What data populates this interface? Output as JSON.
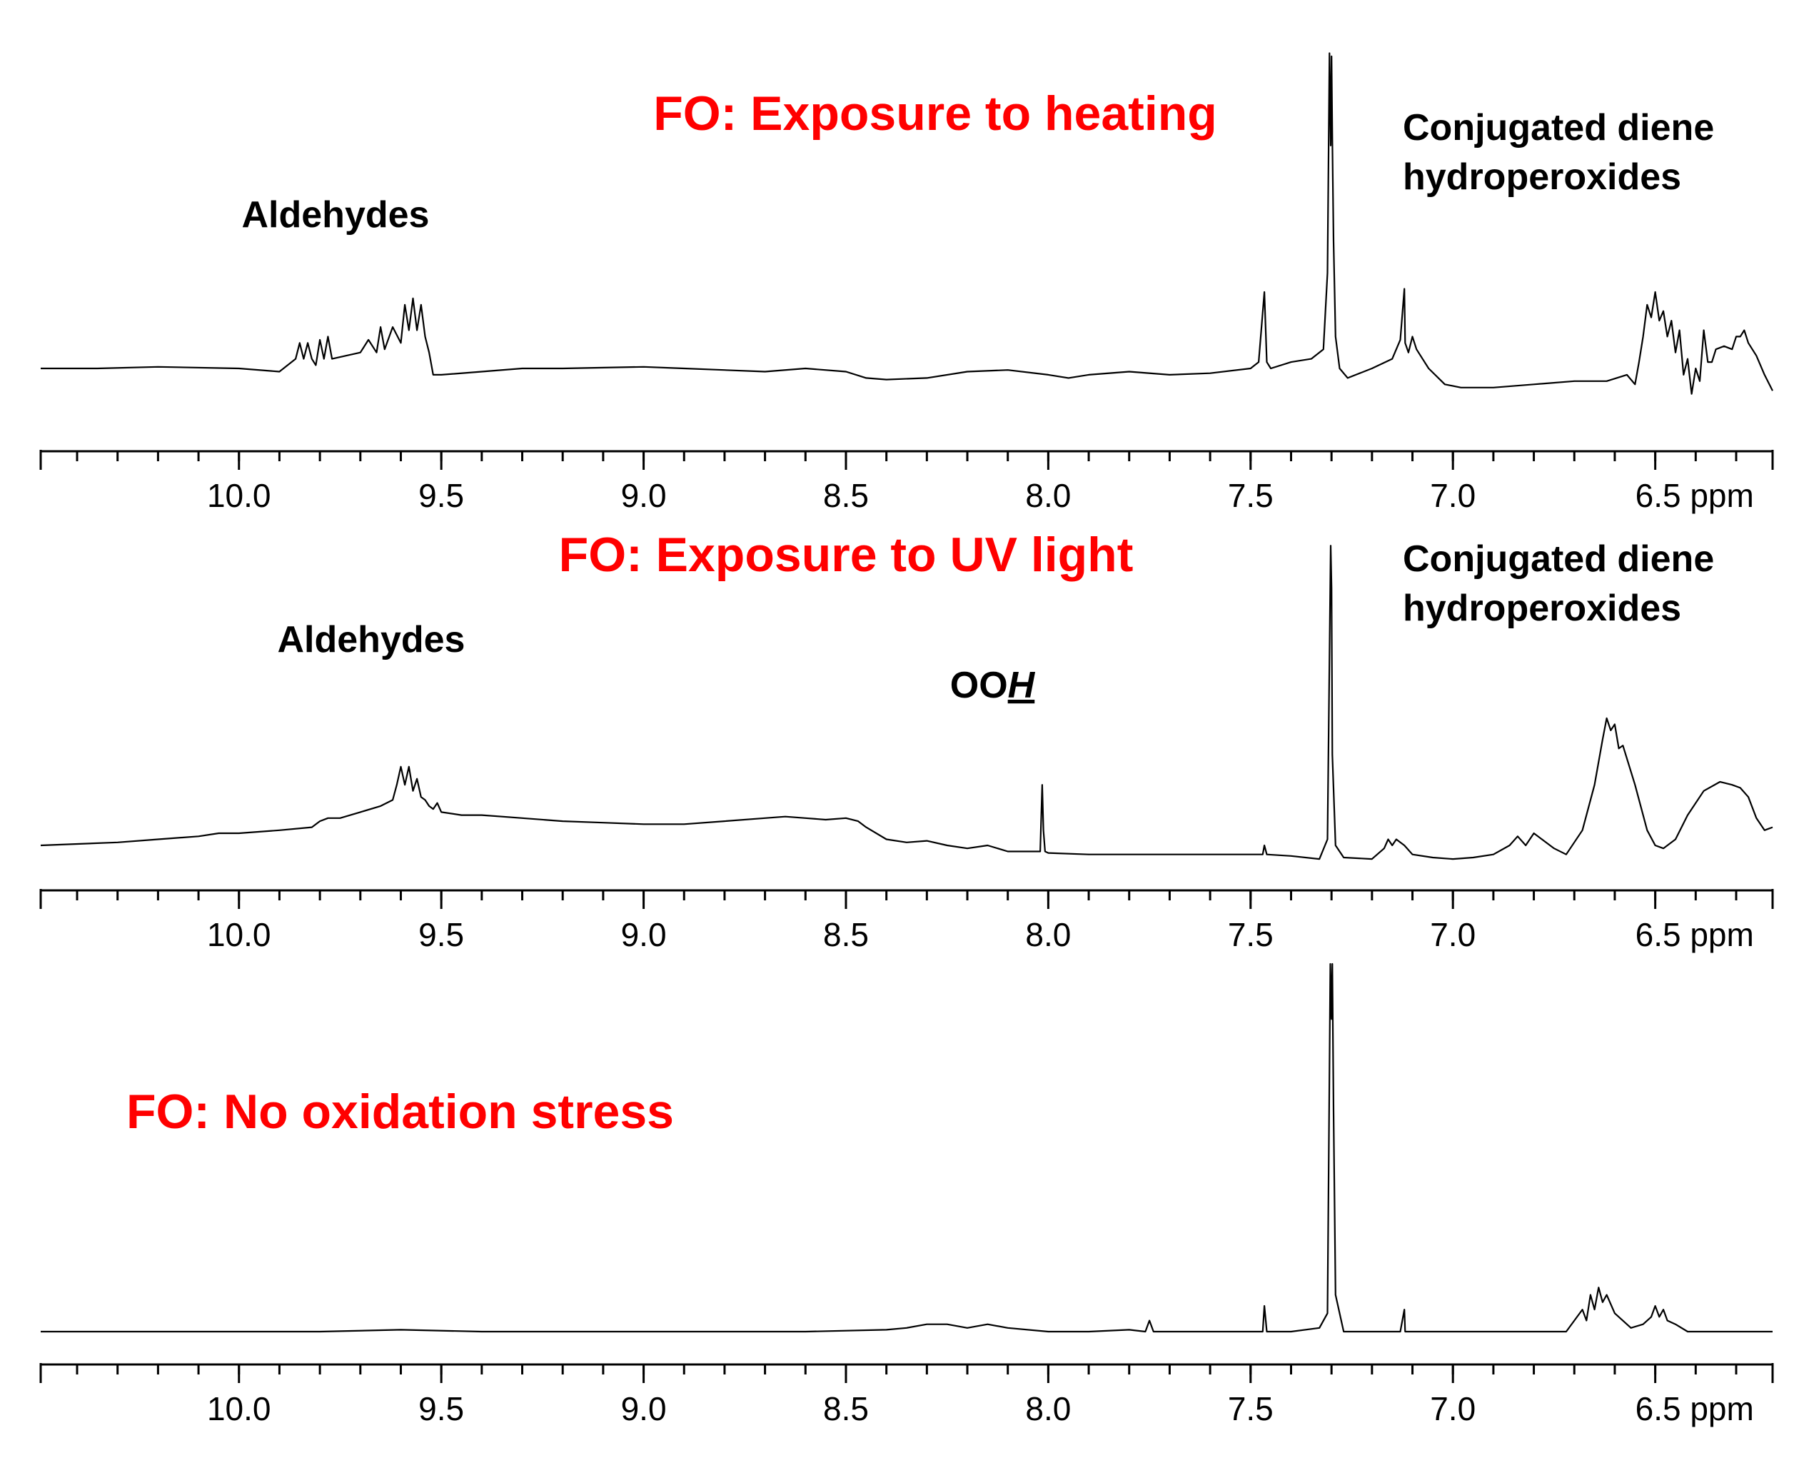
{
  "colors": {
    "title": "#ff0000",
    "text": "#000000",
    "trace": "#000000",
    "background": "#ffffff"
  },
  "chart_data": [
    {
      "type": "line",
      "title": "FO: Exposure to heating",
      "xlabel": "ppm",
      "x_unit": "ppm",
      "xlim": [
        10.49,
        6.21
      ],
      "x_reversed": true,
      "x_ticks": [
        {
          "value": 10.0,
          "label": "10.0"
        },
        {
          "value": 9.5,
          "label": "9.5"
        },
        {
          "value": 9.0,
          "label": "9.0"
        },
        {
          "value": 8.5,
          "label": "8.5"
        },
        {
          "value": 8.0,
          "label": "8.0"
        },
        {
          "value": 7.5,
          "label": "7.5"
        },
        {
          "value": 7.0,
          "label": "7.0"
        },
        {
          "value": 6.5,
          "label": "6.5"
        }
      ],
      "last_tick_suffix": " ppm",
      "ylim": [
        -0.06,
        1.0
      ],
      "annotations": [
        {
          "text": "Aldehydes",
          "x": 9.75
        },
        {
          "text": "Conjugated diene",
          "x": 6.65
        },
        {
          "text": "hydroperoxides",
          "x": 6.65
        }
      ],
      "series": [
        {
          "x": [
            10.49,
            10.35,
            10.2,
            10.0,
            9.9,
            9.86,
            9.85,
            9.84,
            9.83,
            9.82,
            9.81,
            9.8,
            9.79,
            9.78,
            9.77,
            9.7,
            9.68,
            9.66,
            9.65,
            9.64,
            9.62,
            9.6,
            9.59,
            9.58,
            9.57,
            9.56,
            9.55,
            9.54,
            9.53,
            9.52,
            9.5,
            9.4,
            9.3,
            9.2,
            9.0,
            8.9,
            8.7,
            8.6,
            8.5,
            8.45,
            8.4,
            8.3,
            8.2,
            8.1,
            8.0,
            7.95,
            7.9,
            7.8,
            7.7,
            7.6,
            7.5,
            7.48,
            7.466,
            7.46,
            7.45,
            7.4,
            7.35,
            7.32,
            7.31,
            7.305,
            7.302,
            7.3,
            7.298,
            7.295,
            7.29,
            7.28,
            7.26,
            7.2,
            7.15,
            7.13,
            7.12,
            7.118,
            7.11,
            7.1,
            7.09,
            7.08,
            7.06,
            7.02,
            6.98,
            6.95,
            6.9,
            6.8,
            6.7,
            6.62,
            6.57,
            6.55,
            6.54,
            6.53,
            6.52,
            6.51,
            6.5,
            6.49,
            6.48,
            6.47,
            6.46,
            6.45,
            6.44,
            6.43,
            6.42,
            6.41,
            6.4,
            6.39,
            6.38,
            6.37,
            6.36,
            6.35,
            6.33,
            6.31,
            6.3,
            6.29,
            6.28,
            6.27,
            6.25,
            6.23,
            6.21
          ],
          "y": [
            0.0,
            0.0,
            0.005,
            0.0,
            -0.01,
            0.03,
            0.08,
            0.03,
            0.08,
            0.03,
            0.01,
            0.09,
            0.03,
            0.1,
            0.03,
            0.05,
            0.09,
            0.05,
            0.13,
            0.06,
            0.13,
            0.08,
            0.2,
            0.12,
            0.22,
            0.12,
            0.2,
            0.1,
            0.05,
            -0.02,
            -0.02,
            -0.01,
            0.0,
            0.0,
            0.005,
            0.0,
            -0.01,
            0.0,
            -0.01,
            -0.03,
            -0.035,
            -0.03,
            -0.01,
            -0.005,
            -0.02,
            -0.03,
            -0.02,
            -0.01,
            -0.02,
            -0.015,
            0.0,
            0.02,
            0.24,
            0.02,
            0.0,
            0.02,
            0.03,
            0.06,
            0.3,
            0.99,
            0.7,
            0.98,
            0.72,
            0.4,
            0.1,
            0.0,
            -0.03,
            0.0,
            0.03,
            0.09,
            0.25,
            0.08,
            0.05,
            0.1,
            0.06,
            0.04,
            0.0,
            -0.05,
            -0.06,
            -0.06,
            -0.06,
            -0.05,
            -0.04,
            -0.04,
            -0.02,
            -0.05,
            0.02,
            0.1,
            0.2,
            0.16,
            0.24,
            0.15,
            0.18,
            0.1,
            0.15,
            0.05,
            0.12,
            -0.02,
            0.03,
            -0.08,
            0.0,
            -0.04,
            0.12,
            0.02,
            0.02,
            0.06,
            0.07,
            0.06,
            0.1,
            0.1,
            0.12,
            0.08,
            0.04,
            -0.02,
            -0.07
          ]
        }
      ]
    },
    {
      "type": "line",
      "title": "FO: Exposure to UV light",
      "xlabel": "ppm",
      "x_unit": "ppm",
      "xlim": [
        10.49,
        6.21
      ],
      "x_reversed": true,
      "x_ticks": [
        {
          "value": 10.0,
          "label": "10.0"
        },
        {
          "value": 9.5,
          "label": "9.5"
        },
        {
          "value": 9.0,
          "label": "9.0"
        },
        {
          "value": 8.5,
          "label": "8.5"
        },
        {
          "value": 8.0,
          "label": "8.0"
        },
        {
          "value": 7.5,
          "label": "7.5"
        },
        {
          "value": 7.0,
          "label": "7.0"
        },
        {
          "value": 6.5,
          "label": "6.5"
        }
      ],
      "last_tick_suffix": " ppm",
      "ylim": [
        -0.05,
        1.0
      ],
      "annotations": [
        {
          "text": "Aldehydes",
          "x": 9.65
        },
        {
          "text": "OOH",
          "x": 8.04,
          "underlined_italic_part": "H"
        },
        {
          "text": "Conjugated diene",
          "x": 6.65
        },
        {
          "text": "hydroperoxides",
          "x": 6.65
        }
      ],
      "series": [
        {
          "x": [
            10.49,
            10.3,
            10.2,
            10.1,
            10.05,
            10.0,
            9.9,
            9.82,
            9.8,
            9.78,
            9.75,
            9.7,
            9.65,
            9.62,
            9.61,
            9.6,
            9.59,
            9.58,
            9.57,
            9.56,
            9.55,
            9.54,
            9.53,
            9.52,
            9.51,
            9.5,
            9.45,
            9.4,
            9.3,
            9.2,
            9.1,
            9.0,
            8.9,
            8.8,
            8.7,
            8.65,
            8.6,
            8.55,
            8.5,
            8.47,
            8.45,
            8.4,
            8.35,
            8.3,
            8.25,
            8.2,
            8.15,
            8.1,
            8.05,
            8.02,
            8.015,
            8.012,
            8.008,
            8.0,
            7.9,
            7.8,
            7.7,
            7.6,
            7.5,
            7.47,
            7.466,
            7.46,
            7.4,
            7.33,
            7.31,
            7.302,
            7.3,
            7.298,
            7.29,
            7.27,
            7.2,
            7.17,
            7.16,
            7.15,
            7.14,
            7.13,
            7.12,
            7.1,
            7.05,
            7.0,
            6.95,
            6.9,
            6.86,
            6.84,
            6.82,
            6.8,
            6.78,
            6.75,
            6.72,
            6.68,
            6.65,
            6.63,
            6.62,
            6.61,
            6.6,
            6.59,
            6.58,
            6.55,
            6.52,
            6.5,
            6.48,
            6.45,
            6.42,
            6.38,
            6.34,
            6.31,
            6.29,
            6.27,
            6.25,
            6.23,
            6.21
          ],
          "y": [
            0.0,
            0.01,
            0.02,
            0.03,
            0.04,
            0.04,
            0.05,
            0.06,
            0.08,
            0.09,
            0.09,
            0.11,
            0.13,
            0.15,
            0.2,
            0.26,
            0.2,
            0.26,
            0.18,
            0.22,
            0.16,
            0.15,
            0.13,
            0.12,
            0.14,
            0.11,
            0.1,
            0.1,
            0.09,
            0.08,
            0.075,
            0.07,
            0.07,
            0.08,
            0.09,
            0.095,
            0.09,
            0.085,
            0.09,
            0.08,
            0.06,
            0.02,
            0.01,
            0.015,
            0.0,
            -0.01,
            0.0,
            -0.02,
            -0.02,
            -0.02,
            0.2,
            0.05,
            -0.02,
            -0.025,
            -0.03,
            -0.03,
            -0.03,
            -0.03,
            -0.03,
            -0.03,
            0.0,
            -0.03,
            -0.035,
            -0.045,
            0.02,
            0.99,
            0.85,
            0.3,
            0.0,
            -0.04,
            -0.045,
            -0.01,
            0.02,
            0.0,
            0.02,
            0.01,
            0.0,
            -0.03,
            -0.04,
            -0.045,
            -0.04,
            -0.03,
            0.0,
            0.03,
            0.0,
            0.04,
            0.02,
            -0.01,
            -0.03,
            0.05,
            0.2,
            0.35,
            0.42,
            0.38,
            0.4,
            0.32,
            0.33,
            0.2,
            0.05,
            0.0,
            -0.01,
            0.02,
            0.1,
            0.18,
            0.21,
            0.2,
            0.19,
            0.16,
            0.09,
            0.05,
            0.06
          ]
        }
      ]
    },
    {
      "type": "line",
      "title": "FO: No oxidation stress",
      "xlabel": "ppm",
      "x_unit": "ppm",
      "xlim": [
        10.49,
        6.21
      ],
      "x_reversed": true,
      "x_ticks": [
        {
          "value": 10.0,
          "label": "10.0"
        },
        {
          "value": 9.5,
          "label": "9.5"
        },
        {
          "value": 9.0,
          "label": "9.0"
        },
        {
          "value": 8.5,
          "label": "8.5"
        },
        {
          "value": 8.0,
          "label": "8.0"
        },
        {
          "value": 7.5,
          "label": "7.5"
        },
        {
          "value": 7.0,
          "label": "7.0"
        },
        {
          "value": 6.5,
          "label": "6.5"
        }
      ],
      "last_tick_suffix": " ppm",
      "ylim": [
        -0.02,
        1.0
      ],
      "series": [
        {
          "x": [
            10.49,
            10.2,
            10.0,
            9.8,
            9.6,
            9.4,
            9.2,
            9.0,
            8.8,
            8.6,
            8.4,
            8.35,
            8.3,
            8.25,
            8.2,
            8.15,
            8.1,
            8.0,
            7.9,
            7.8,
            7.76,
            7.75,
            7.74,
            7.7,
            7.6,
            7.5,
            7.47,
            7.466,
            7.46,
            7.4,
            7.33,
            7.31,
            7.303,
            7.3,
            7.298,
            7.295,
            7.29,
            7.27,
            7.2,
            7.13,
            7.12,
            7.118,
            7.11,
            7.0,
            6.9,
            6.8,
            6.72,
            6.7,
            6.68,
            6.67,
            6.66,
            6.65,
            6.64,
            6.63,
            6.62,
            6.6,
            6.56,
            6.53,
            6.51,
            6.5,
            6.49,
            6.48,
            6.47,
            6.45,
            6.42,
            6.38,
            6.3,
            6.21
          ],
          "y": [
            0.0,
            0.0,
            0.0,
            0.0,
            0.005,
            0.0,
            0.0,
            0.0,
            0.0,
            0.0,
            0.005,
            0.01,
            0.02,
            0.02,
            0.01,
            0.02,
            0.01,
            0.0,
            0.0,
            0.005,
            0.0,
            0.03,
            0.0,
            0.0,
            0.0,
            0.0,
            0.0,
            0.07,
            0.0,
            0.0,
            0.01,
            0.05,
            1.0,
            0.85,
            1.0,
            0.6,
            0.1,
            0.0,
            0.0,
            0.0,
            0.06,
            0.0,
            0.0,
            0.0,
            0.0,
            0.0,
            0.0,
            0.03,
            0.06,
            0.03,
            0.1,
            0.06,
            0.12,
            0.08,
            0.1,
            0.05,
            0.01,
            0.02,
            0.04,
            0.07,
            0.04,
            0.06,
            0.03,
            0.02,
            0.0,
            0.0,
            0.0,
            0.0
          ]
        }
      ]
    }
  ]
}
